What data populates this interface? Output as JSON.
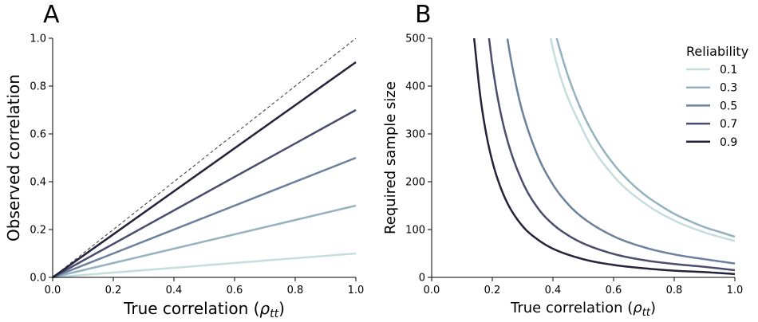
{
  "chart_data": [
    {
      "panel": "A",
      "type": "line",
      "xlabel": "True correlation (",
      "xlabel_symbol": "ρ",
      "xlabel_sub": "tt",
      "xlabel_close": ")",
      "ylabel": "Observed correlation",
      "xlim": [
        0,
        1
      ],
      "ylim": [
        0,
        1
      ],
      "xticks": [
        "0.0",
        "0.2",
        "0.4",
        "0.6",
        "0.8",
        "1.0"
      ],
      "yticks": [
        "0.0",
        "0.2",
        "0.4",
        "0.6",
        "0.8",
        "1.0"
      ],
      "grid": false,
      "reference_line": {
        "x": [
          0,
          1
        ],
        "y": [
          0,
          1
        ],
        "style": "dashed",
        "color": "#333333"
      },
      "series": [
        {
          "reliability": 0.1,
          "color": "#c6dde0",
          "x": [
            0,
            1
          ],
          "y": [
            0,
            0.1
          ]
        },
        {
          "reliability": 0.3,
          "color": "#94b2bf",
          "x": [
            0,
            1
          ],
          "y": [
            0,
            0.3
          ]
        },
        {
          "reliability": 0.5,
          "color": "#6c819e",
          "x": [
            0,
            1
          ],
          "y": [
            0,
            0.5
          ]
        },
        {
          "reliability": 0.7,
          "color": "#4a4d6e",
          "x": [
            0,
            1
          ],
          "y": [
            0,
            0.7
          ]
        },
        {
          "reliability": 0.9,
          "color": "#25223a",
          "x": [
            0,
            1
          ],
          "y": [
            0,
            0.9
          ]
        }
      ]
    },
    {
      "panel": "B",
      "type": "line",
      "xlabel": "True correlation (",
      "xlabel_symbol": "ρ",
      "xlabel_sub": "tt",
      "xlabel_close": ")",
      "ylabel": "Required sample size",
      "xlim": [
        0,
        1
      ],
      "ylim": [
        0,
        500
      ],
      "xticks": [
        "0.0",
        "0.2",
        "0.4",
        "0.6",
        "0.8",
        "1.0"
      ],
      "yticks": [
        "0",
        "100",
        "200",
        "300",
        "400",
        "500"
      ],
      "grid": false,
      "legend": {
        "title": "Reliability",
        "position": "top-right",
        "entries": [
          "0.1",
          "0.3",
          "0.5",
          "0.7",
          "0.9"
        ]
      },
      "series": [
        {
          "reliability": 0.1,
          "color": "#c6dde0",
          "x": [
            0.3,
            0.4,
            0.5,
            0.6,
            0.7,
            0.8,
            0.9,
            1.0
          ],
          "y": [
            850,
            478,
            306,
            212,
            156,
            119,
            94,
            76
          ]
        },
        {
          "reliability": 0.3,
          "color": "#94b2bf",
          "x": [
            0.41,
            0.42,
            0.45,
            0.5,
            0.55,
            0.6,
            0.65,
            0.7,
            0.75,
            0.8,
            0.85,
            0.9,
            0.95,
            1.0
          ],
          "y": [
            506,
            483,
            421,
            341,
            282,
            237,
            202,
            174,
            152,
            133,
            118,
            105,
            95,
            85
          ]
        },
        {
          "reliability": 0.5,
          "color": "#6c819e",
          "x": [
            0.25,
            0.26,
            0.28,
            0.3,
            0.35,
            0.4,
            0.45,
            0.5,
            0.6,
            0.7,
            0.8,
            0.9,
            1.0
          ],
          "y": [
            499,
            461,
            397,
            345,
            254,
            194,
            153,
            124,
            86,
            63,
            48,
            38,
            29
          ]
        },
        {
          "reliability": 0.7,
          "color": "#4a4d6e",
          "x": [
            0.18,
            0.2,
            0.22,
            0.25,
            0.3,
            0.35,
            0.4,
            0.45,
            0.5,
            0.6,
            0.7,
            0.8,
            0.9,
            1.0
          ],
          "y": [
            550,
            446,
            368,
            286,
            199,
            145,
            111,
            88,
            71,
            49,
            36,
            28,
            22,
            15
          ]
        },
        {
          "reliability": 0.9,
          "color": "#25223a",
          "x": [
            0.14,
            0.16,
            0.18,
            0.2,
            0.22,
            0.25,
            0.3,
            0.35,
            0.4,
            0.5,
            0.6,
            0.7,
            0.8,
            0.9,
            1.0
          ],
          "y": [
            500,
            381,
            300,
            243,
            201,
            155,
            107,
            79,
            60,
            38,
            26,
            19,
            14,
            11,
            7
          ]
        }
      ]
    }
  ]
}
